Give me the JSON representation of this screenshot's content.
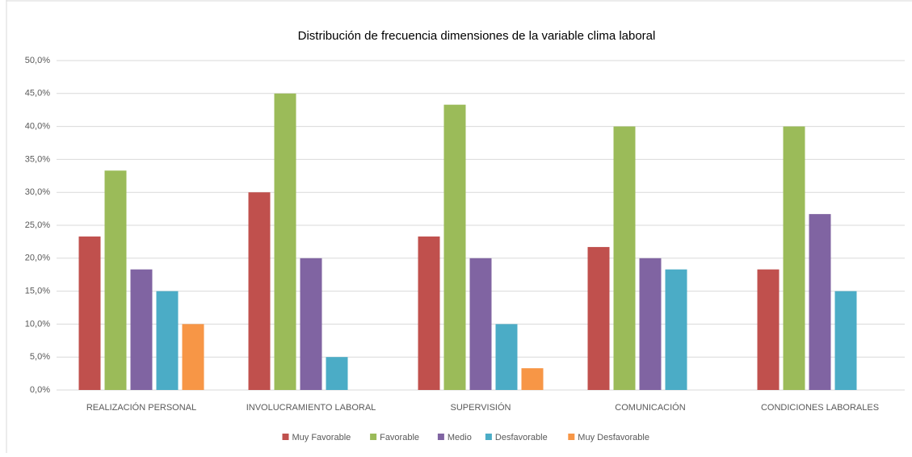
{
  "chart_data": {
    "type": "bar",
    "title": "Distribución de frecuencia dimensiones de la variable clima laboral",
    "categories": [
      "REALIZACIÓN PERSONAL",
      "INVOLUCRAMIENTO LABORAL",
      "SUPERVISIÓN",
      "COMUNICACIÓN",
      "CONDICIONES LABORALES"
    ],
    "series": [
      {
        "name": "Muy Favorable",
        "color": "#c0504d",
        "values": [
          23.3,
          30,
          23.3,
          21.7,
          18.3
        ]
      },
      {
        "name": "Favorable",
        "color": "#9bbb59",
        "values": [
          33.3,
          45,
          43.3,
          40,
          40
        ]
      },
      {
        "name": "Medio",
        "color": "#8064a2",
        "values": [
          18.3,
          20,
          20,
          20,
          26.7
        ]
      },
      {
        "name": "Desfavorable",
        "color": "#4bacc6",
        "values": [
          15,
          5,
          10,
          18.3,
          15
        ]
      },
      {
        "name": "Muy Desfavorable",
        "color": "#f79646",
        "values": [
          10,
          0,
          3.3,
          0,
          0
        ]
      }
    ],
    "ylim": [
      0,
      50
    ],
    "yticks": [
      {
        "value": 0,
        "label": "0,0%"
      },
      {
        "value": 5,
        "label": "5,0%"
      },
      {
        "value": 10,
        "label": "10,0%"
      },
      {
        "value": 15,
        "label": "15,0%"
      },
      {
        "value": 20,
        "label": "20,0%"
      },
      {
        "value": 25,
        "label": "25,0%"
      },
      {
        "value": 30,
        "label": "30,0%"
      },
      {
        "value": 35,
        "label": "35,0%"
      },
      {
        "value": 40,
        "label": "40,0%"
      },
      {
        "value": 45,
        "label": "45,0%"
      },
      {
        "value": 50,
        "label": "50,0%"
      }
    ],
    "grid": true
  }
}
